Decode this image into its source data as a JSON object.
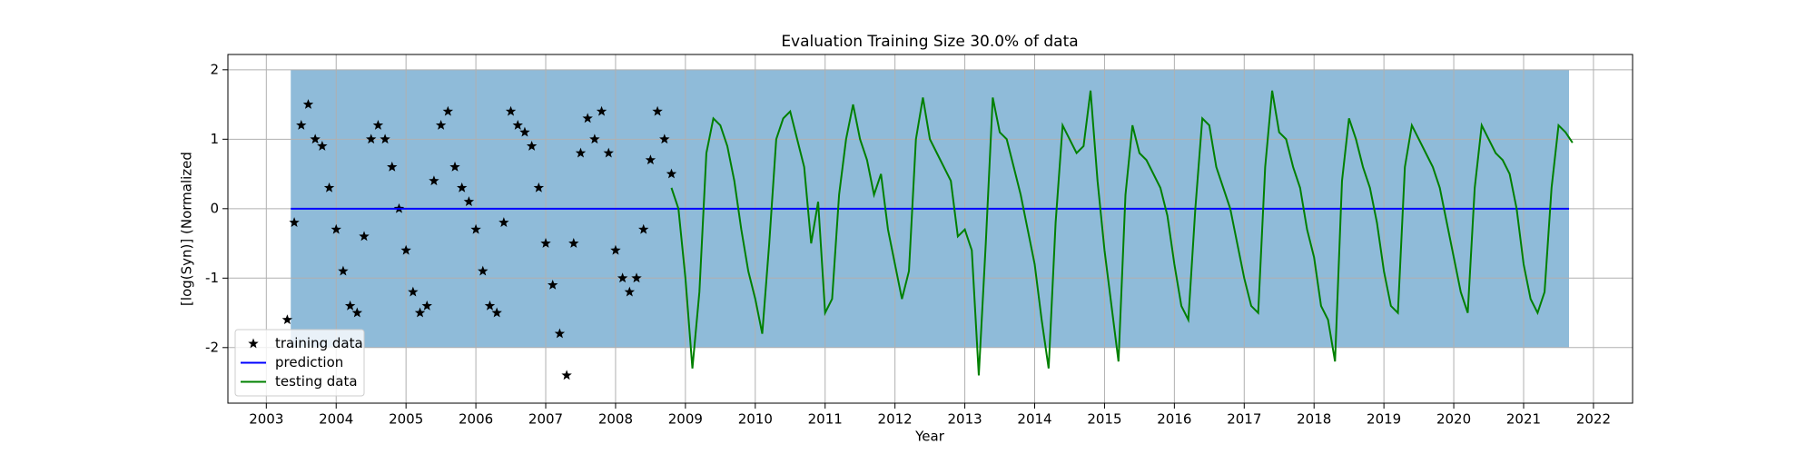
{
  "chart_data": {
    "type": "line",
    "title": "Evaluation Training Size 30.0% of data",
    "xlabel": "Year",
    "ylabel": "[log(Syn)] (Normalized",
    "xlim": [
      2002.45,
      2022.56
    ],
    "ylim": [
      -2.8,
      2.22
    ],
    "xticks": [
      2003,
      2004,
      2005,
      2006,
      2007,
      2008,
      2009,
      2010,
      2011,
      2012,
      2013,
      2014,
      2015,
      2016,
      2017,
      2018,
      2019,
      2020,
      2021,
      2022
    ],
    "yticks": [
      -2,
      -1,
      0,
      1,
      2
    ],
    "grid": true,
    "legend": "lower left",
    "fill_between": {
      "x": [
        2003.35,
        2021.65
      ],
      "lower": [
        -2,
        -2
      ],
      "upper": [
        2,
        2
      ],
      "color": "#8fbbd9"
    },
    "series": [
      {
        "name": "training data",
        "style": "star",
        "color": "#000000",
        "x": [
          2003.3,
          2003.4,
          2003.5,
          2003.6,
          2003.7,
          2003.8,
          2003.9,
          2004.0,
          2004.1,
          2004.2,
          2004.3,
          2004.4,
          2004.5,
          2004.6,
          2004.7,
          2004.8,
          2004.9,
          2005.0,
          2005.1,
          2005.2,
          2005.3,
          2005.4,
          2005.5,
          2005.6,
          2005.7,
          2005.8,
          2005.9,
          2006.0,
          2006.1,
          2006.2,
          2006.3,
          2006.4,
          2006.5,
          2006.6,
          2006.7,
          2006.8,
          2006.9,
          2007.0,
          2007.1,
          2007.2,
          2007.3,
          2007.4,
          2007.5,
          2007.6,
          2007.7,
          2007.8,
          2007.9,
          2008.0,
          2008.1,
          2008.2,
          2008.3,
          2008.4,
          2008.5,
          2008.6,
          2008.7,
          2008.8
        ],
        "values": [
          -1.6,
          -0.2,
          1.2,
          1.5,
          1.0,
          0.9,
          0.3,
          -0.3,
          -0.9,
          -1.4,
          -1.5,
          -0.4,
          1.0,
          1.2,
          1.0,
          0.6,
          0.0,
          -0.6,
          -1.2,
          -1.5,
          -1.4,
          0.4,
          1.2,
          1.4,
          0.6,
          0.3,
          0.1,
          -0.3,
          -0.9,
          -1.4,
          -1.5,
          -0.2,
          1.4,
          1.2,
          1.1,
          0.9,
          0.3,
          -0.5,
          -1.1,
          -1.8,
          -2.4,
          -0.5,
          0.8,
          1.3,
          1.0,
          1.4,
          0.8,
          -0.6,
          -1.0,
          -1.2,
          -1.0,
          -0.3,
          0.7,
          1.4,
          1.0,
          0.5
        ]
      },
      {
        "name": "prediction",
        "style": "line",
        "color": "#0000ff",
        "x": [
          2003.35,
          2021.65
        ],
        "values": [
          0,
          0
        ]
      },
      {
        "name": "testing data",
        "style": "line",
        "color": "#008000",
        "x": [
          2008.8,
          2008.9,
          2009.0,
          2009.1,
          2009.2,
          2009.3,
          2009.4,
          2009.5,
          2009.6,
          2009.7,
          2009.8,
          2009.9,
          2010.0,
          2010.1,
          2010.2,
          2010.3,
          2010.4,
          2010.5,
          2010.6,
          2010.7,
          2010.8,
          2010.9,
          2011.0,
          2011.1,
          2011.2,
          2011.3,
          2011.4,
          2011.5,
          2011.6,
          2011.7,
          2011.8,
          2011.9,
          2012.0,
          2012.1,
          2012.2,
          2012.3,
          2012.4,
          2012.5,
          2012.6,
          2012.7,
          2012.8,
          2012.9,
          2013.0,
          2013.1,
          2013.2,
          2013.3,
          2013.4,
          2013.5,
          2013.6,
          2013.7,
          2013.8,
          2013.9,
          2014.0,
          2014.1,
          2014.2,
          2014.3,
          2014.4,
          2014.5,
          2014.6,
          2014.7,
          2014.8,
          2014.9,
          2015.0,
          2015.1,
          2015.2,
          2015.3,
          2015.4,
          2015.5,
          2015.6,
          2015.7,
          2015.8,
          2015.9,
          2016.0,
          2016.1,
          2016.2,
          2016.3,
          2016.4,
          2016.5,
          2016.6,
          2016.7,
          2016.8,
          2016.9,
          2017.0,
          2017.1,
          2017.2,
          2017.3,
          2017.4,
          2017.5,
          2017.6,
          2017.7,
          2017.8,
          2017.9,
          2018.0,
          2018.1,
          2018.2,
          2018.3,
          2018.4,
          2018.5,
          2018.6,
          2018.7,
          2018.8,
          2018.9,
          2019.0,
          2019.1,
          2019.2,
          2019.3,
          2019.4,
          2019.5,
          2019.6,
          2019.7,
          2019.8,
          2019.9,
          2020.0,
          2020.1,
          2020.2,
          2020.3,
          2020.4,
          2020.5,
          2020.6,
          2020.7,
          2020.8,
          2020.9,
          2021.0,
          2021.1,
          2021.2,
          2021.3,
          2021.4,
          2021.5,
          2021.6,
          2021.7
        ],
        "values": [
          0.3,
          0.0,
          -1.0,
          -2.3,
          -1.2,
          0.8,
          1.3,
          1.2,
          0.9,
          0.4,
          -0.3,
          -0.9,
          -1.3,
          -1.8,
          -0.5,
          1.0,
          1.3,
          1.4,
          1.0,
          0.6,
          -0.5,
          0.1,
          -1.5,
          -1.3,
          0.2,
          1.0,
          1.5,
          1.0,
          0.7,
          0.2,
          0.5,
          -0.3,
          -0.8,
          -1.3,
          -0.9,
          1.0,
          1.6,
          1.0,
          0.8,
          0.6,
          0.4,
          -0.4,
          -0.3,
          -0.6,
          -2.4,
          -0.5,
          1.6,
          1.1,
          1.0,
          0.6,
          0.2,
          -0.3,
          -0.8,
          -1.6,
          -2.3,
          -0.2,
          1.2,
          1.0,
          0.8,
          0.9,
          1.7,
          0.4,
          -0.6,
          -1.4,
          -2.2,
          0.2,
          1.2,
          0.8,
          0.7,
          0.5,
          0.3,
          -0.1,
          -0.8,
          -1.4,
          -1.6,
          0.0,
          1.3,
          1.2,
          0.6,
          0.3,
          0.0,
          -0.5,
          -1.0,
          -1.4,
          -1.5,
          0.6,
          1.7,
          1.1,
          1.0,
          0.6,
          0.3,
          -0.3,
          -0.7,
          -1.4,
          -1.6,
          -2.2,
          0.4,
          1.3,
          1.0,
          0.6,
          0.3,
          -0.2,
          -0.9,
          -1.4,
          -1.5,
          0.6,
          1.2,
          1.0,
          0.8,
          0.6,
          0.3,
          -0.2,
          -0.7,
          -1.2,
          -1.5,
          0.3,
          1.2,
          1.0,
          0.8,
          0.7,
          0.5,
          0.0,
          -0.8,
          -1.3,
          -1.5,
          -1.2,
          0.3,
          1.2,
          1.1,
          0.95
        ]
      }
    ]
  }
}
